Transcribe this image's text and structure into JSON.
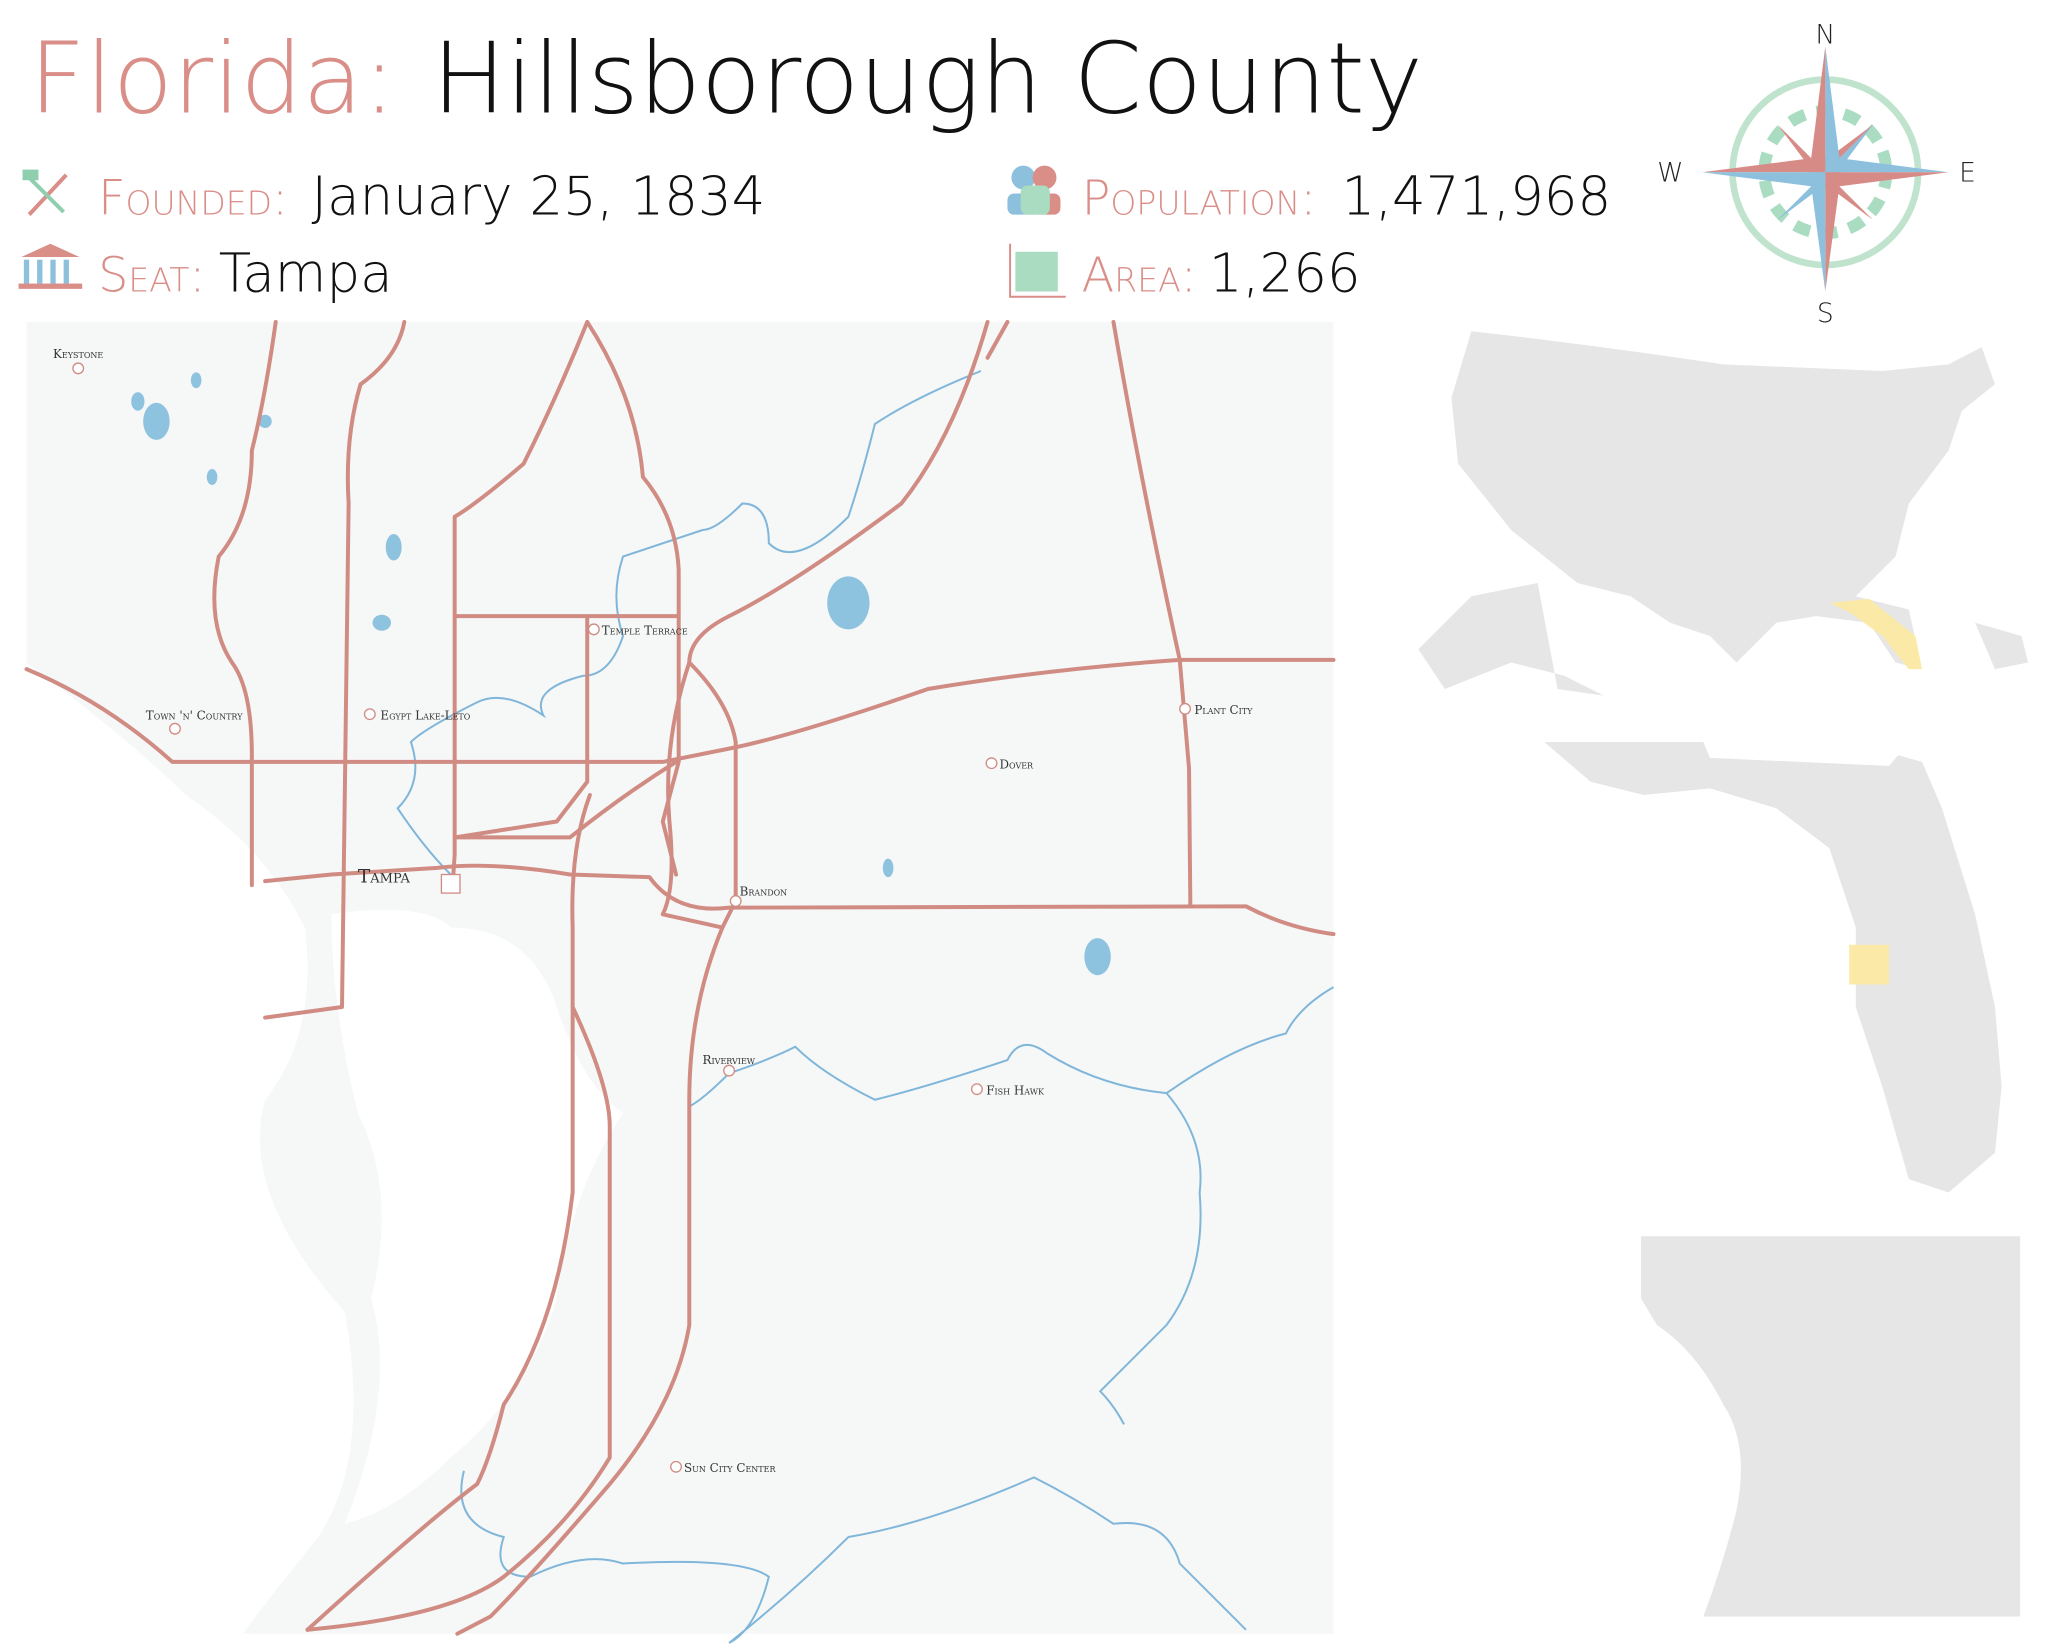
{
  "header": {
    "state": "Florida:",
    "county": "Hillsborough County"
  },
  "facts": {
    "founded": {
      "label": "Founded:",
      "value": "January 25, 1834"
    },
    "seat": {
      "label": "Seat:",
      "value": "Tampa"
    },
    "population": {
      "label": "Population:",
      "value": "1,471,968"
    },
    "area": {
      "label": "Area:",
      "value": "1,266"
    }
  },
  "compass": {
    "n": "N",
    "e": "E",
    "s": "S",
    "w": "W"
  },
  "places": [
    "Keystone",
    "Town 'n' Country",
    "Egypt Lake-Leto",
    "Temple Terrace",
    "Plant City",
    "Dover",
    "Tampa",
    "Brandon",
    "Riverview",
    "Fish Hawk",
    "Sun City Center"
  ]
}
